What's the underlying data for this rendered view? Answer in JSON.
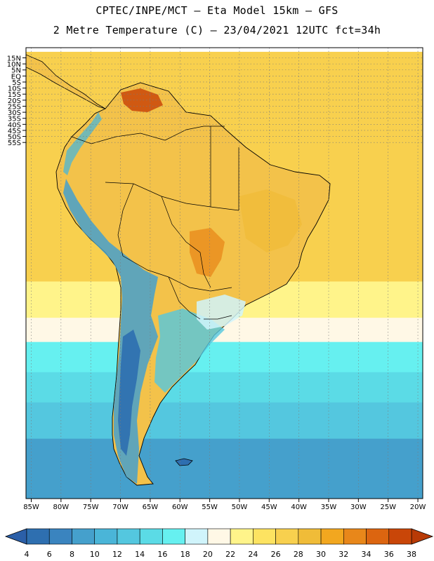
{
  "header": {
    "title_line1": "CPTEC/INPE/MCT –  Eta Model 15km – GFS",
    "title_line2": "2 Metre Temperature (C) – 23/04/2021 12UTC fct=34h"
  },
  "map": {
    "region": "South America",
    "lat_labels": [
      "15N",
      "10N",
      "5N",
      "EQ",
      "5S",
      "10S",
      "15S",
      "20S",
      "25S",
      "30S",
      "35S",
      "40S",
      "45S",
      "50S",
      "55S"
    ],
    "lon_labels": [
      "85W",
      "80W",
      "75W",
      "70W",
      "65W",
      "60W",
      "55W",
      "50W",
      "45W",
      "40W",
      "35W",
      "30W",
      "25W",
      "20W"
    ],
    "ocean_bands": [
      {
        "lat_from": 16,
        "lat_to": -22,
        "value": 26
      },
      {
        "lat_from": -22,
        "lat_to": -28,
        "value": 22
      },
      {
        "lat_from": -28,
        "lat_to": -32,
        "value": 20
      },
      {
        "lat_from": -32,
        "lat_to": -37,
        "value": 16
      },
      {
        "lat_from": -37,
        "lat_to": -42,
        "value": 14
      },
      {
        "lat_from": -42,
        "lat_to": -48,
        "value": 12
      },
      {
        "lat_from": -48,
        "lat_to": -58,
        "value": 8
      }
    ]
  },
  "colorbar": {
    "labels": [
      "4",
      "6",
      "8",
      "10",
      "12",
      "14",
      "16",
      "18",
      "20",
      "22",
      "24",
      "26",
      "28",
      "30",
      "32",
      "34",
      "36",
      "38"
    ],
    "colors": [
      "#2e6fb0",
      "#3a84bf",
      "#45a0cc",
      "#4ab5d8",
      "#54c7df",
      "#5bdbe6",
      "#66f0f0",
      "#d0f4fb",
      "#fff8e6",
      "#fff48a",
      "#fde361",
      "#f8d04e",
      "#f0bc38",
      "#f2a71f",
      "#e8871a",
      "#dc6510",
      "#c94608"
    ],
    "under_color": "#2b5fa8",
    "over_color": "#b83a06"
  }
}
